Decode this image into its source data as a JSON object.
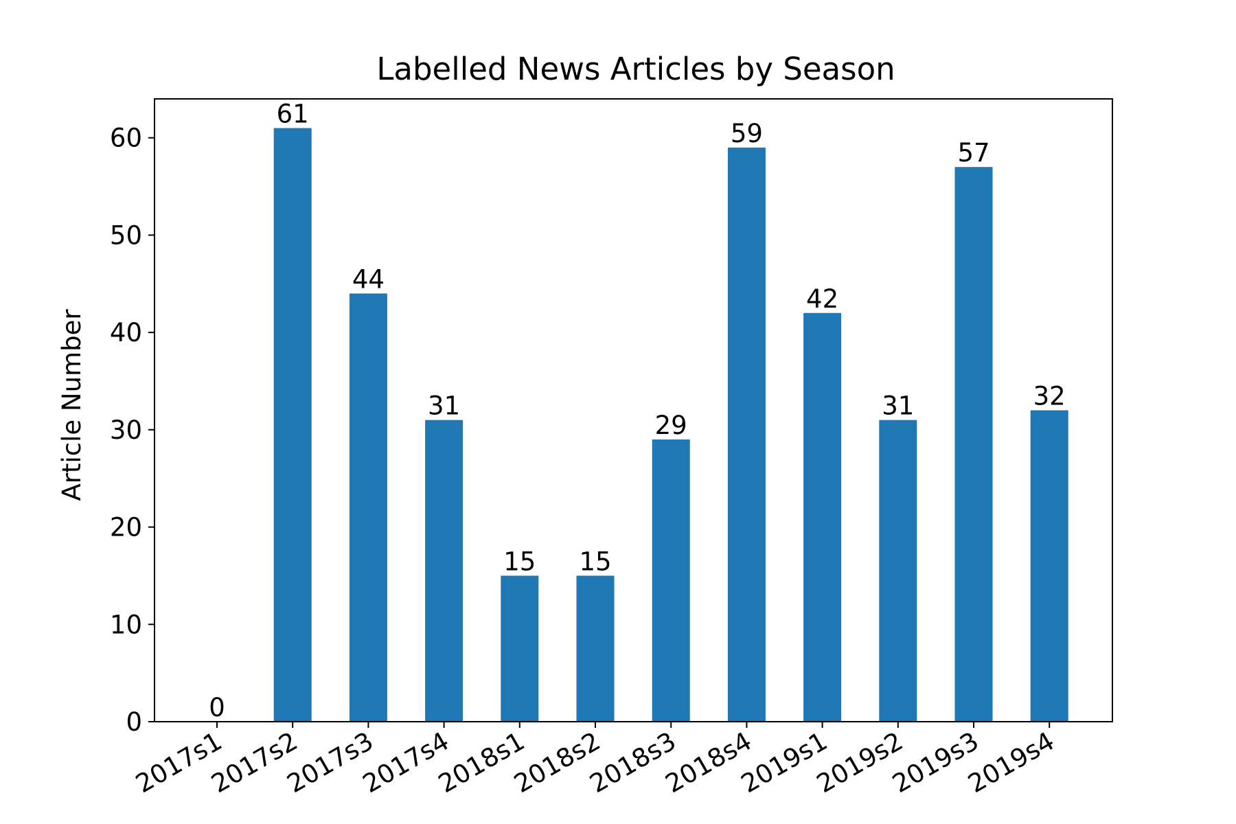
{
  "chart_data": {
    "type": "bar",
    "title": "Labelled News Articles by Season",
    "xlabel": "",
    "ylabel": "Article Number",
    "categories": [
      "2017s1",
      "2017s2",
      "2017s3",
      "2017s4",
      "2018s1",
      "2018s2",
      "2018s3",
      "2018s4",
      "2019s1",
      "2019s2",
      "2019s3",
      "2019s4"
    ],
    "values": [
      0,
      61,
      44,
      31,
      15,
      15,
      29,
      59,
      42,
      31,
      57,
      32
    ],
    "data_labels": [
      "0",
      "61",
      "44",
      "31",
      "15",
      "15",
      "29",
      "59",
      "42",
      "31",
      "57",
      "32"
    ],
    "ylim": [
      0,
      64
    ],
    "yticks": [
      0,
      10,
      20,
      30,
      40,
      50,
      60
    ],
    "ytick_labels": [
      "0",
      "10",
      "20",
      "30",
      "40",
      "50",
      "60"
    ],
    "xtick_rotation_deg": 30,
    "grid": false,
    "legend": "none",
    "bar_color": "#1f77b4"
  }
}
